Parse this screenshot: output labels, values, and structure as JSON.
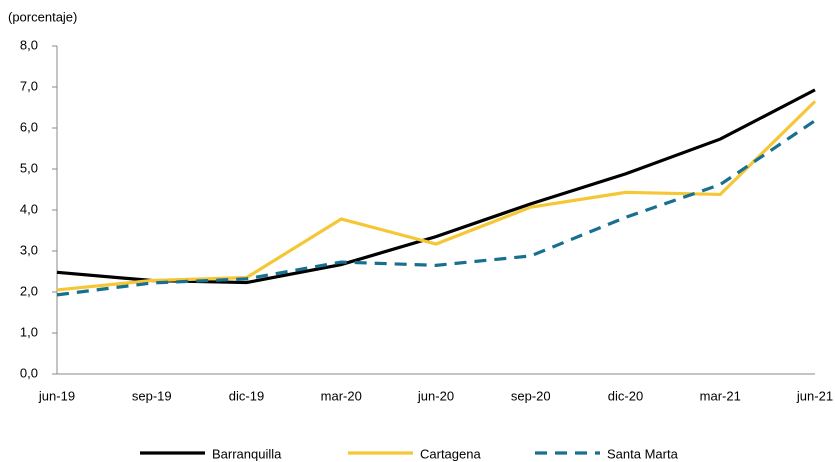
{
  "chart_data": {
    "type": "line",
    "y_label": "(porcentaje)",
    "categories": [
      "jun-19",
      "sep-19",
      "dic-19",
      "mar-20",
      "jun-20",
      "sep-20",
      "dic-20",
      "mar-21",
      "jun-21"
    ],
    "series": [
      {
        "name": "Barranquilla",
        "color": "#000000",
        "dashed": false,
        "values": [
          2.48,
          2.28,
          2.23,
          2.67,
          3.35,
          4.15,
          4.88,
          5.73,
          6.93
        ]
      },
      {
        "name": "Cartagena",
        "color": "#f5c736",
        "dashed": false,
        "values": [
          2.05,
          2.28,
          2.35,
          3.78,
          3.17,
          4.07,
          4.43,
          4.38,
          6.65
        ]
      },
      {
        "name": "Santa Marta",
        "color": "#17708f",
        "dashed": true,
        "values": [
          1.93,
          2.22,
          2.32,
          2.73,
          2.65,
          2.88,
          3.82,
          4.62,
          6.18
        ]
      }
    ],
    "ylim": [
      0,
      8
    ],
    "yticks": [
      {
        "value": 0,
        "label": "0,0"
      },
      {
        "value": 1,
        "label": "1,0"
      },
      {
        "value": 2,
        "label": "2,0"
      },
      {
        "value": 3,
        "label": "3,0"
      },
      {
        "value": 4,
        "label": "4,0"
      },
      {
        "value": 5,
        "label": "5,0"
      },
      {
        "value": 6,
        "label": "6,0"
      },
      {
        "value": 7,
        "label": "7,0"
      },
      {
        "value": 8,
        "label": "8,0"
      }
    ],
    "grid": false,
    "legend": "bottom"
  }
}
